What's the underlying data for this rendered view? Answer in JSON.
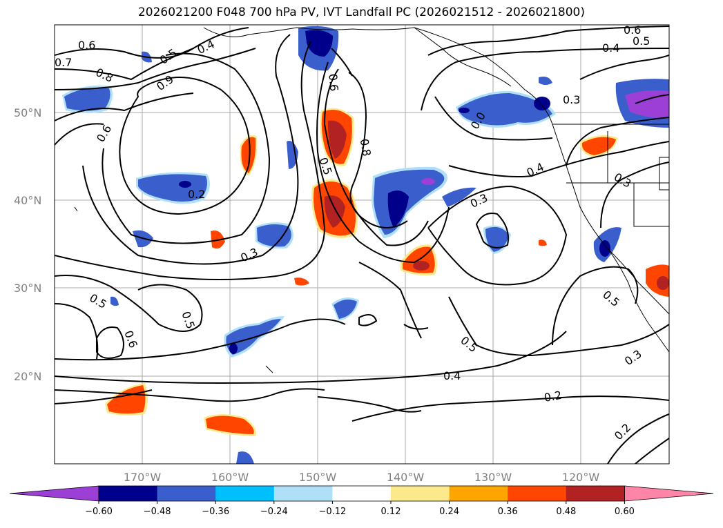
{
  "title": "2026021200 F048 700 hPa PV, IVT Landfall PC (2026021512 - 2026021800)",
  "lat_labels": [
    "50°N",
    "40°N",
    "30°N",
    "20°N"
  ],
  "lon_labels": [
    "170°W",
    "160°W",
    "150°W",
    "140°W",
    "130°W",
    "120°W"
  ],
  "contour_labels": [
    "0.6",
    "0.7",
    "0.5",
    "0.4",
    "0.8",
    "0.9",
    "0.6",
    "0.2",
    "0.5",
    "0.6",
    "0.8",
    "0.3",
    "0.4",
    "0.3",
    "0.3",
    "0.6",
    "0.5",
    "0.4",
    "0.5",
    "0.5",
    "0.6",
    "0.5",
    "0.4",
    "0.2",
    "0.3",
    "0.2",
    "0.3",
    "0.0",
    "0.5"
  ],
  "colorbar": {
    "ticks": [
      "−0.60",
      "−0.48",
      "−0.36",
      "−0.24",
      "−0.12",
      "0.12",
      "0.24",
      "0.36",
      "0.48",
      "0.60"
    ],
    "colors": [
      "#9b3fd6",
      "#00008b",
      "#3a5fcd",
      "#00bfff",
      "#b0e0f8",
      "#ffffff",
      "#fce98c",
      "#ffa500",
      "#ff4500",
      "#b22222",
      "#ff85a8"
    ]
  },
  "chart_data": {
    "type": "heatmap",
    "title": "2026021200 F048 700 hPa PV, IVT Landfall PC (2026021512 - 2026021800)",
    "lon_range": [
      "180°W",
      "110°W"
    ],
    "lat_range": [
      "10°N",
      "60°N"
    ],
    "colorbar_levels": [
      -0.6,
      -0.48,
      -0.36,
      -0.24,
      -0.12,
      0.12,
      0.24,
      0.36,
      0.48,
      0.6
    ],
    "contour_levels_shown": [
      0.2,
      0.3,
      0.4,
      0.5,
      0.6,
      0.7,
      0.8,
      0.9
    ],
    "grid": true
  }
}
